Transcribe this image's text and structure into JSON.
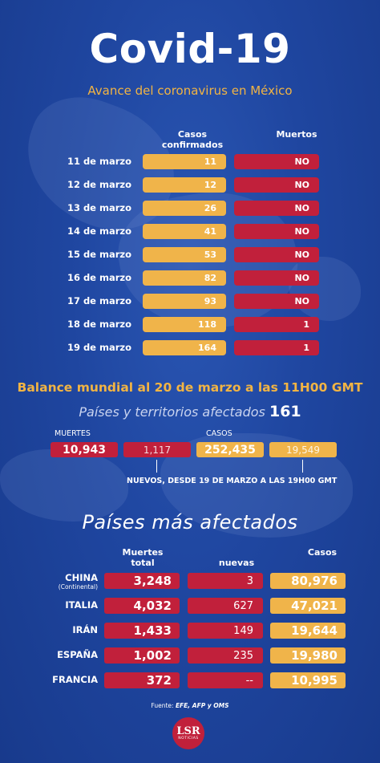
{
  "title": "Covid-19",
  "subtitle": "Avance del coronavirus en México",
  "mexico_table": {
    "header_casos": "Casos confirmados",
    "header_muertos": "Muertos",
    "rows": [
      {
        "date": "11 de marzo",
        "casos": "11",
        "muertos": "NO"
      },
      {
        "date": "12 de marzo",
        "casos": "12",
        "muertos": "NO"
      },
      {
        "date": "13 de marzo",
        "casos": "26",
        "muertos": "NO"
      },
      {
        "date": "14 de marzo",
        "casos": "41",
        "muertos": "NO"
      },
      {
        "date": "15 de marzo",
        "casos": "53",
        "muertos": "NO"
      },
      {
        "date": "16 de marzo",
        "casos": "82",
        "muertos": "NO"
      },
      {
        "date": "17 de marzo",
        "casos": "93",
        "muertos": "NO"
      },
      {
        "date": "18 de marzo",
        "casos": "118",
        "muertos": "1"
      },
      {
        "date": "19 de marzo",
        "casos": "164",
        "muertos": "1"
      }
    ]
  },
  "balance": {
    "title": "Balance mundial al 20 de marzo a las 11H00 GMT",
    "paises_label": "Países y territorios afectados",
    "paises_count": "161",
    "muertes_label": "MUERTES",
    "casos_label": "CASOS",
    "muertes_total": "10,943",
    "muertes_nuevos": "1,117",
    "casos_total": "252,435",
    "casos_nuevos": "19,549",
    "nuevos_note": "NUEVOS, DESDE 19 DE MARZO A LAS 19H00 GMT"
  },
  "mas_afectados": {
    "title": "Países más afectados",
    "header_muertes": "Muertes total",
    "header_nuevas": "nuevas",
    "header_casos": "Casos",
    "rows": [
      {
        "country": "CHINA",
        "sub": "(Continental)",
        "muertes": "3,248",
        "nuevas": "3",
        "casos": "80,976"
      },
      {
        "country": "ITALIA",
        "sub": "",
        "muertes": "4,032",
        "nuevas": "627",
        "casos": "47,021"
      },
      {
        "country": "IRÁN",
        "sub": "",
        "muertes": "1,433",
        "nuevas": "149",
        "casos": "19,644"
      },
      {
        "country": "ESPAÑA",
        "sub": "",
        "muertes": "1,002",
        "nuevas": "235",
        "casos": "19,980"
      },
      {
        "country": "FRANCIA",
        "sub": "",
        "muertes": "372",
        "nuevas": "--",
        "casos": "10,995"
      }
    ]
  },
  "fuente_label": "Fuente:",
  "fuente_sources": "EFE, AFP y OMS",
  "logo": {
    "main": "LSR",
    "sub": "NOTICIAS"
  }
}
